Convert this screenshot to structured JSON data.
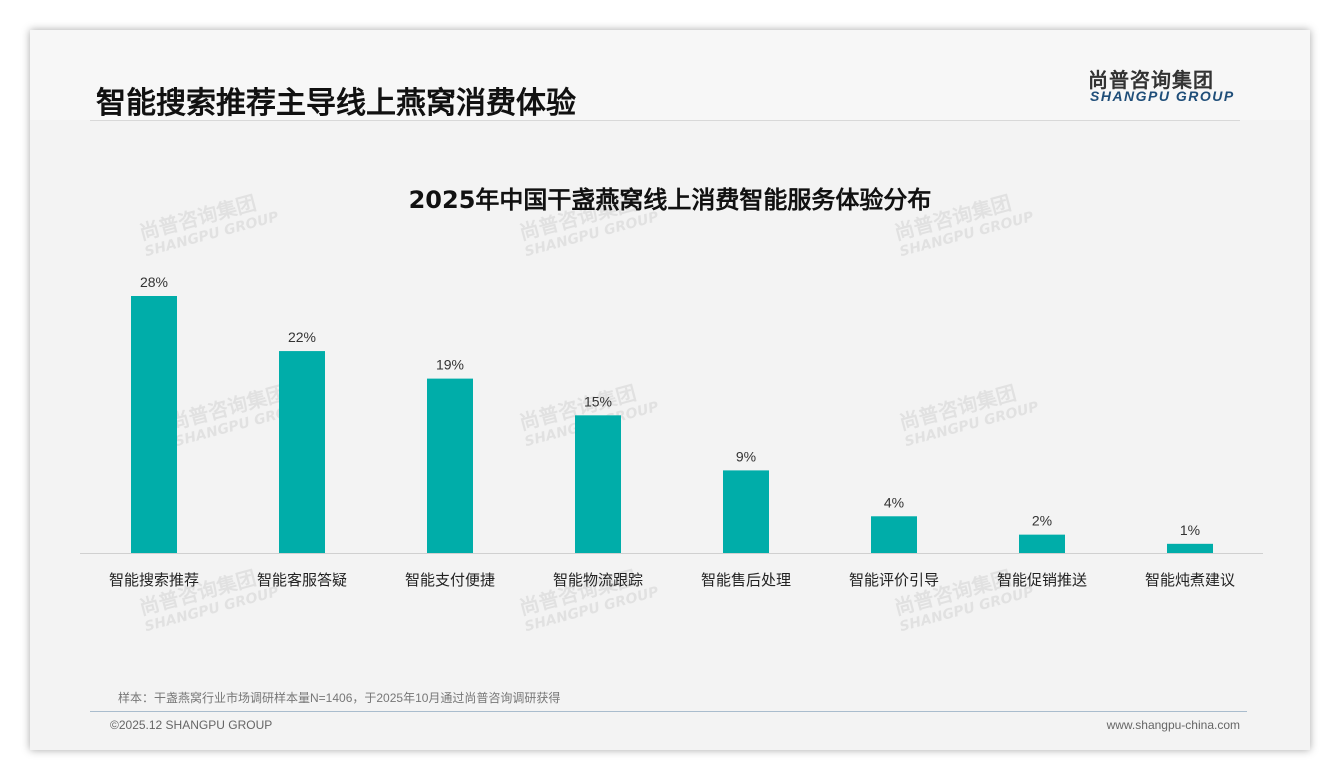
{
  "header": {
    "title": "智能搜索推荐主导线上燕窝消费体验",
    "logo_cn": "尚普咨询集团",
    "logo_en": "SHANGPU GROUP"
  },
  "watermark": {
    "cn": "尚普咨询集团",
    "en": "SHANGPU GROUP"
  },
  "chart_data": {
    "type": "bar",
    "title": "2025年中国干盏燕窝线上消费智能服务体验分布",
    "categories": [
      "智能搜索推荐",
      "智能客服答疑",
      "智能支付便捷",
      "智能物流跟踪",
      "智能售后处理",
      "智能评价引导",
      "智能促销推送",
      "智能炖煮建议"
    ],
    "values": [
      28,
      22,
      19,
      15,
      9,
      4,
      2,
      1
    ],
    "labels": [
      "28%",
      "22%",
      "19%",
      "15%",
      "9%",
      "4%",
      "2%",
      "1%"
    ],
    "unit": "%",
    "xlabel": "",
    "ylabel": "",
    "ylim": [
      0,
      28
    ],
    "grid": false,
    "color": "#00ada9"
  },
  "footer": {
    "note": "样本：干盏燕窝行业市场调研样本量N=1406，于2025年10月通过尚普咨询调研获得",
    "copyright": "©2025.12 SHANGPU GROUP",
    "url": "www.shangpu-china.com"
  }
}
